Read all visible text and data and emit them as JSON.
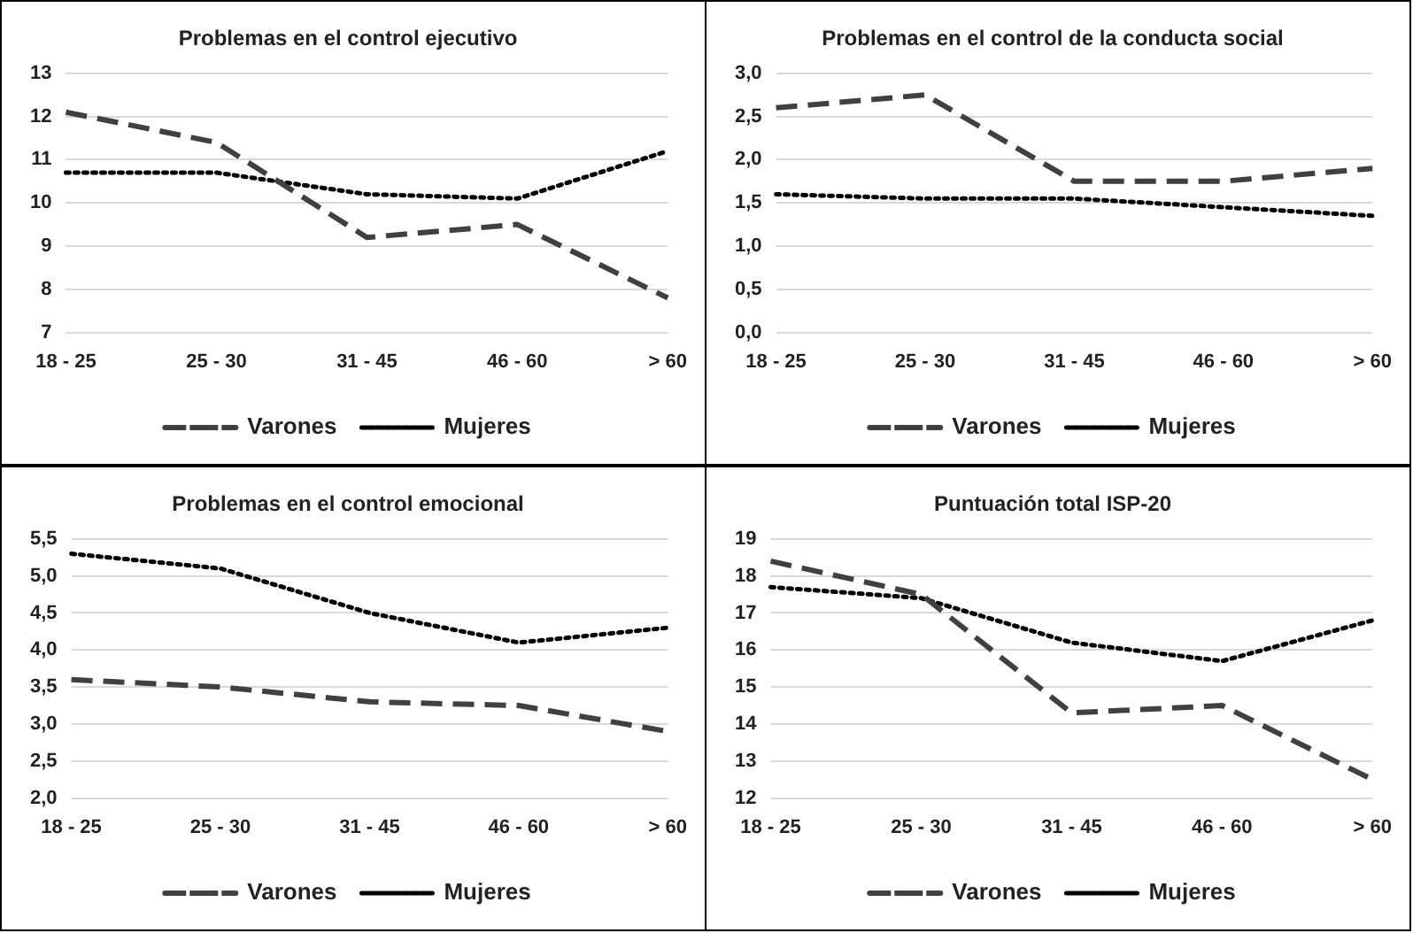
{
  "chart_data": [
    {
      "type": "line",
      "title": "Problemas en el control ejecutivo",
      "categories": [
        "18 - 25",
        "25 - 30",
        "31 - 45",
        "46 - 60",
        "> 60"
      ],
      "series": [
        {
          "name": "Varones",
          "color": "#404040",
          "line_style": "dashed",
          "values": [
            12.1,
            11.4,
            9.2,
            9.5,
            7.8
          ]
        },
        {
          "name": "Mujeres",
          "color": "#000000",
          "line_style": "dotted",
          "values": [
            10.7,
            10.7,
            10.2,
            10.1,
            11.2
          ]
        }
      ],
      "ylim": [
        7,
        13
      ],
      "yticks": [
        7,
        8,
        9,
        10,
        11,
        12,
        13
      ],
      "grid": "y",
      "legend": "bottom",
      "marker": "none"
    },
    {
      "type": "line",
      "title": "Problemas en el control de la conducta social",
      "categories": [
        "18 - 25",
        "25 - 30",
        "31 - 45",
        "46 - 60",
        "> 60"
      ],
      "series": [
        {
          "name": "Varones",
          "color": "#404040",
          "line_style": "dashed",
          "values": [
            2.6,
            2.75,
            1.75,
            1.75,
            1.9
          ]
        },
        {
          "name": "Mujeres",
          "color": "#000000",
          "line_style": "dotted",
          "values": [
            1.6,
            1.55,
            1.55,
            1.45,
            1.35
          ]
        }
      ],
      "ylim": [
        0,
        3
      ],
      "yticks": [
        {
          "value": 0,
          "label": "0,0"
        },
        {
          "value": 0.5,
          "label": "0,5"
        },
        {
          "value": 1,
          "label": "1,0"
        },
        {
          "value": 1.5,
          "label": "1,5"
        },
        {
          "value": 2,
          "label": "2,0"
        },
        {
          "value": 2.5,
          "label": "2,5"
        },
        {
          "value": 3,
          "label": "3,0"
        }
      ],
      "grid": "y",
      "legend": "bottom",
      "marker": "none"
    },
    {
      "type": "line",
      "title": "Problemas en el control emocional",
      "categories": [
        "18 - 25",
        "25 - 30",
        "31 - 45",
        "46 - 60",
        "> 60"
      ],
      "series": [
        {
          "name": "Varones",
          "color": "#404040",
          "line_style": "dashed",
          "values": [
            3.6,
            3.5,
            3.3,
            3.25,
            2.9
          ]
        },
        {
          "name": "Mujeres",
          "color": "#000000",
          "line_style": "dotted",
          "values": [
            5.3,
            5.1,
            4.5,
            4.1,
            4.3
          ]
        }
      ],
      "ylim": [
        2,
        5.5
      ],
      "yticks": [
        {
          "value": 2,
          "label": "2,0"
        },
        {
          "value": 2.5,
          "label": "2,5"
        },
        {
          "value": 3,
          "label": "3,0"
        },
        {
          "value": 3.5,
          "label": "3,5"
        },
        {
          "value": 4,
          "label": "4,0"
        },
        {
          "value": 4.5,
          "label": "4,5"
        },
        {
          "value": 5,
          "label": "5,0"
        },
        {
          "value": 5.5,
          "label": "5,5"
        }
      ],
      "grid": "y",
      "legend": "bottom",
      "marker": "none"
    },
    {
      "type": "line",
      "title": "Puntuación total ISP-20",
      "categories": [
        "18 - 25",
        "25 - 30",
        "31 - 45",
        "46 - 60",
        "> 60"
      ],
      "series": [
        {
          "name": "Varones",
          "color": "#404040",
          "line_style": "dashed",
          "values": [
            18.4,
            17.5,
            14.3,
            14.5,
            12.5
          ]
        },
        {
          "name": "Mujeres",
          "color": "#000000",
          "line_style": "dotted",
          "values": [
            17.7,
            17.4,
            16.2,
            15.7,
            16.8
          ]
        }
      ],
      "ylim": [
        12,
        19
      ],
      "yticks": [
        12,
        13,
        14,
        15,
        16,
        17,
        18,
        19
      ],
      "grid": "y",
      "legend": "bottom",
      "marker": "none"
    }
  ]
}
